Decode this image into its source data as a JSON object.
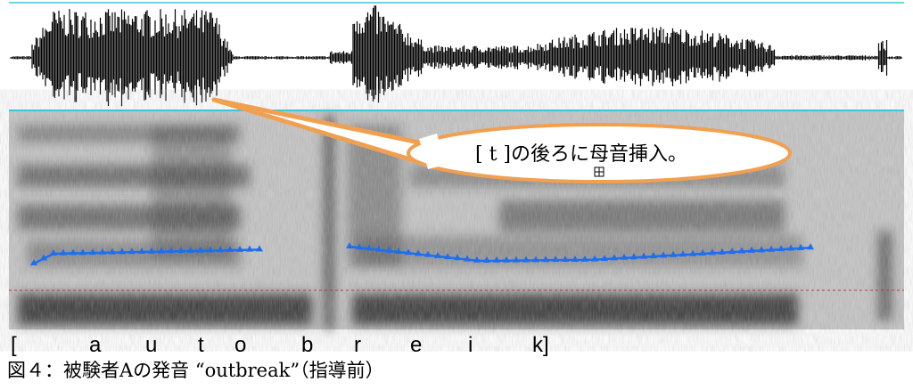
{
  "callout": "[ t ]の後ろに母音挿入。",
  "transcription": [
    "[",
    "a",
    "u",
    "t",
    "o",
    "b",
    "r",
    "e",
    "i",
    "k]"
  ],
  "caption": "図４：被験者Aの発音 “outbreak”（指導前）"
}
